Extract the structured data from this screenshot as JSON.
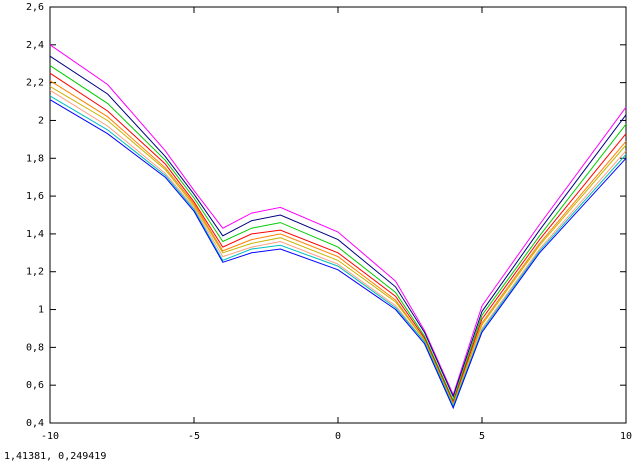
{
  "chart_data": {
    "type": "line",
    "x": [
      -10,
      -8,
      -6,
      -5,
      -4,
      -3,
      -2,
      0,
      2,
      3,
      4,
      5,
      7,
      10
    ],
    "series": [
      {
        "color": "#ff00ff",
        "values": [
          2.4,
          2.19,
          1.84,
          1.63,
          1.43,
          1.51,
          1.54,
          1.41,
          1.15,
          0.89,
          0.55,
          1.02,
          1.45,
          2.07
        ]
      },
      {
        "color": "#000080",
        "values": [
          2.34,
          2.14,
          1.81,
          1.61,
          1.39,
          1.47,
          1.5,
          1.37,
          1.12,
          0.88,
          0.54,
          0.99,
          1.42,
          2.03
        ]
      },
      {
        "color": "#00cc00",
        "values": [
          2.29,
          2.09,
          1.79,
          1.59,
          1.36,
          1.43,
          1.46,
          1.33,
          1.09,
          0.86,
          0.52,
          0.97,
          1.39,
          1.98
        ]
      },
      {
        "color": "#ff0000",
        "values": [
          2.25,
          2.05,
          1.77,
          1.57,
          1.33,
          1.4,
          1.42,
          1.3,
          1.07,
          0.85,
          0.51,
          0.95,
          1.37,
          1.93
        ]
      },
      {
        "color": "#ff8000",
        "values": [
          2.21,
          2.02,
          1.75,
          1.56,
          1.31,
          1.37,
          1.4,
          1.28,
          1.05,
          0.84,
          0.5,
          0.93,
          1.35,
          1.89
        ]
      },
      {
        "color": "#c8b400",
        "values": [
          2.18,
          2.0,
          1.74,
          1.55,
          1.3,
          1.35,
          1.38,
          1.26,
          1.04,
          0.84,
          0.5,
          0.92,
          1.34,
          1.87
        ]
      },
      {
        "color": "#ffa080",
        "values": [
          2.16,
          1.97,
          1.72,
          1.54,
          1.28,
          1.33,
          1.36,
          1.24,
          1.02,
          0.83,
          0.49,
          0.9,
          1.32,
          1.84
        ]
      },
      {
        "color": "#00c0c0",
        "values": [
          2.13,
          1.95,
          1.71,
          1.53,
          1.26,
          1.32,
          1.34,
          1.23,
          1.01,
          0.83,
          0.49,
          0.89,
          1.31,
          1.82
        ]
      },
      {
        "color": "#0000ff",
        "values": [
          2.11,
          1.93,
          1.7,
          1.52,
          1.25,
          1.3,
          1.32,
          1.21,
          1.0,
          0.82,
          0.48,
          0.88,
          1.3,
          1.8
        ]
      }
    ],
    "xlim": [
      -10,
      10
    ],
    "xticks": [
      -10,
      -5,
      0,
      5,
      10
    ],
    "ylim": [
      0.4,
      2.6
    ],
    "yticks": [
      {
        "value": 0.4,
        "label": "0,4"
      },
      {
        "value": 0.6,
        "label": "0,6"
      },
      {
        "value": 0.8,
        "label": "0,8"
      },
      1,
      {
        "value": 1.2,
        "label": "1,2"
      },
      {
        "value": 1.4,
        "label": "1,4"
      },
      {
        "value": 1.6,
        "label": "1,6"
      },
      {
        "value": 1.8,
        "label": "1,8"
      },
      2,
      {
        "value": 2.2,
        "label": "2,2"
      },
      {
        "value": 2.4,
        "label": "2,4"
      },
      {
        "value": 2.6,
        "label": "2,6"
      }
    ]
  },
  "status": "1,41381,  0,249419"
}
